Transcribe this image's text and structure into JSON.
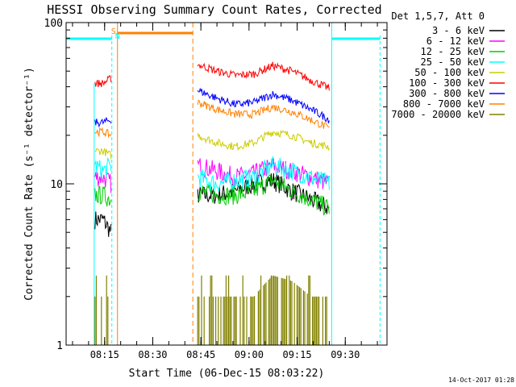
{
  "chart_data": {
    "type": "line",
    "title": "HESSI Observing Summary Count Rates, Corrected",
    "xlabel": "Start Time (06-Dec-15 08:03:22)",
    "ylabel": "Corrected Count Rate (s⁻¹ detector⁻¹)",
    "yscale": "log",
    "ylim": [
      1,
      100
    ],
    "xlim": [
      "08:03",
      "09:43"
    ],
    "x_ticks": [
      "08:15",
      "08:30",
      "08:45",
      "09:00",
      "09:15",
      "09:30"
    ],
    "y_ticks": [
      "1",
      "10",
      "100"
    ],
    "legend_position": "right",
    "legend_header": "Det 1,5,7, Att 0",
    "series": [
      {
        "name": "3 - 6 keV",
        "color": "#000000",
        "seg1": [
          6,
          6,
          5
        ],
        "seg2": [
          8.5,
          8.5,
          9,
          10,
          10.5,
          9,
          8,
          7
        ]
      },
      {
        "name": "6 - 12 keV",
        "color": "#ff00ff",
        "seg1": [
          11,
          11,
          10
        ],
        "seg2": [
          13,
          12,
          11,
          11.5,
          13,
          12,
          11,
          10
        ]
      },
      {
        "name": "12 - 25 keV",
        "color": "#00cc00",
        "seg1": [
          8.5,
          8.5,
          8
        ],
        "seg2": [
          9,
          8.5,
          8.5,
          9,
          10.5,
          9,
          8,
          7
        ]
      },
      {
        "name": "25 - 50 keV",
        "color": "#00ffff",
        "seg1": [
          13,
          12,
          13
        ],
        "seg2": [
          11,
          10,
          10.5,
          11,
          13,
          12,
          11,
          10
        ]
      },
      {
        "name": "50 - 100 keV",
        "color": "#cccc00",
        "seg1": [
          16,
          16,
          15
        ],
        "seg2": [
          20,
          18,
          17,
          18,
          21,
          20,
          18,
          17
        ]
      },
      {
        "name": "100 - 300 keV",
        "color": "#ff0000",
        "seg1": [
          42,
          42,
          45
        ],
        "seg2": [
          55,
          50,
          47,
          48,
          54,
          50,
          44,
          39
        ]
      },
      {
        "name": "300 - 800 keV",
        "color": "#0000ff",
        "seg1": [
          24,
          24,
          25
        ],
        "seg2": [
          38,
          34,
          31,
          32,
          36,
          33,
          29,
          25
        ]
      },
      {
        "name": "800 - 7000 keV",
        "color": "#ff8000",
        "seg1": [
          21,
          21,
          20
        ],
        "seg2": [
          32,
          29,
          27,
          27,
          30,
          28,
          25,
          22
        ]
      },
      {
        "name": "7000 - 20000 keV",
        "color": "#808000",
        "seg1": [
          2,
          2,
          2
        ],
        "seg2": [
          2,
          2,
          2,
          2,
          2.7,
          2.5,
          2,
          2
        ]
      }
    ],
    "segment1_range": [
      "08:12",
      "08:17"
    ],
    "segment2_range": [
      "08:44",
      "09:25"
    ],
    "flags": [
      {
        "label": "S",
        "color": "#ff8000"
      },
      {
        "label": "N",
        "color": "#00ffff"
      }
    ],
    "footer_timestamp": "14-Oct-2017 01:28"
  }
}
